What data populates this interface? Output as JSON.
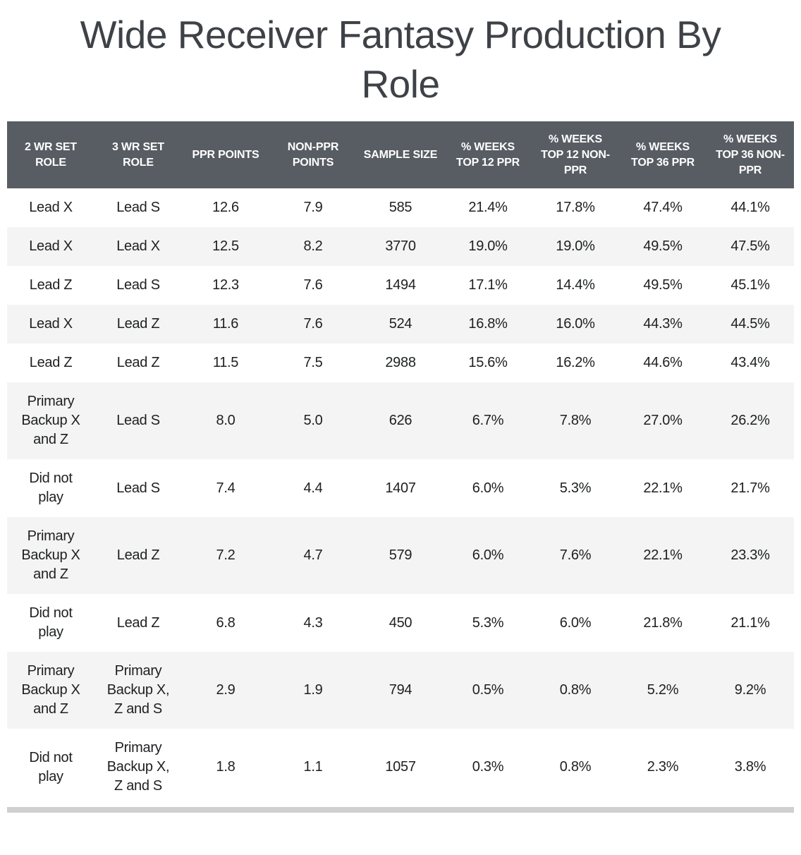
{
  "header": {
    "title": "Wide Receiver Fantasy Production By Role"
  },
  "colors": {
    "header_bg": "#585d63",
    "header_text": "#ffffff",
    "stripe": "#f4f4f4",
    "row_bg": "#ffffff",
    "body_text": "#1d1f21",
    "title_text": "#3e4247",
    "bar": "#cfcfcf"
  },
  "chart_data": {
    "type": "table",
    "title": "Wide Receiver Fantasy Production By Role",
    "columns": [
      "2 WR SET ROLE",
      "3 WR SET ROLE",
      "PPR POINTS",
      "NON-PPR POINTS",
      "SAMPLE SIZE",
      "% WEEKS TOP 12 PPR",
      "% WEEKS TOP 12 NON-PPR",
      "% WEEKS TOP 36 PPR",
      "% WEEKS TOP 36 NON-PPR"
    ],
    "rows": [
      [
        "Lead X",
        "Lead S",
        "12.6",
        "7.9",
        "585",
        "21.4%",
        "17.8%",
        "47.4%",
        "44.1%"
      ],
      [
        "Lead X",
        "Lead X",
        "12.5",
        "8.2",
        "3770",
        "19.0%",
        "19.0%",
        "49.5%",
        "47.5%"
      ],
      [
        "Lead Z",
        "Lead S",
        "12.3",
        "7.6",
        "1494",
        "17.1%",
        "14.4%",
        "49.5%",
        "45.1%"
      ],
      [
        "Lead X",
        "Lead Z",
        "11.6",
        "7.6",
        "524",
        "16.8%",
        "16.0%",
        "44.3%",
        "44.5%"
      ],
      [
        "Lead Z",
        "Lead Z",
        "11.5",
        "7.5",
        "2988",
        "15.6%",
        "16.2%",
        "44.6%",
        "43.4%"
      ],
      [
        "Primary Backup X and Z",
        "Lead S",
        "8.0",
        "5.0",
        "626",
        "6.7%",
        "7.8%",
        "27.0%",
        "26.2%"
      ],
      [
        "Did not play",
        "Lead S",
        "7.4",
        "4.4",
        "1407",
        "6.0%",
        "5.3%",
        "22.1%",
        "21.7%"
      ],
      [
        "Primary Backup X and Z",
        "Lead Z",
        "7.2",
        "4.7",
        "579",
        "6.0%",
        "7.6%",
        "22.1%",
        "23.3%"
      ],
      [
        "Did not play",
        "Lead Z",
        "6.8",
        "4.3",
        "450",
        "5.3%",
        "6.0%",
        "21.8%",
        "21.1%"
      ],
      [
        "Primary Backup X and Z",
        "Primary Backup X, Z and S",
        "2.9",
        "1.9",
        "794",
        "0.5%",
        "0.8%",
        "5.2%",
        "9.2%"
      ],
      [
        "Did not play",
        "Primary Backup X, Z and S",
        "1.8",
        "1.1",
        "1057",
        "0.3%",
        "0.8%",
        "2.3%",
        "3.8%"
      ]
    ]
  }
}
